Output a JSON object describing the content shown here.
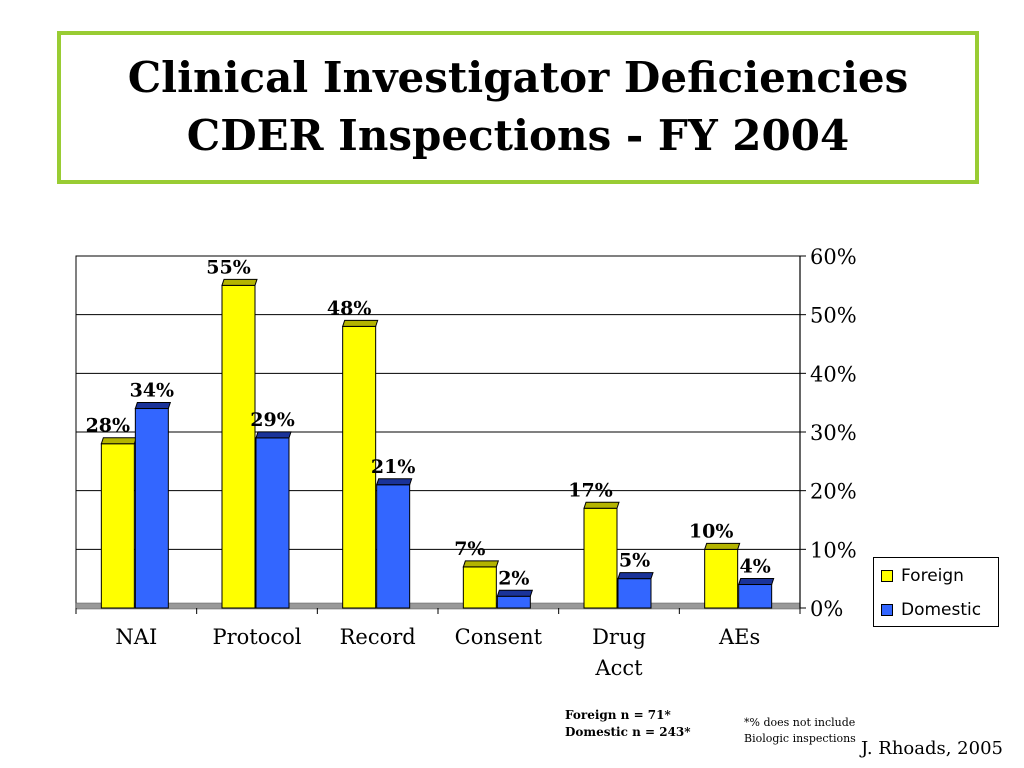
{
  "title": {
    "line1": "Clinical Investigator Deficiencies",
    "line2": "CDER Inspections - FY 2004"
  },
  "colors": {
    "title_border": "#99cc33",
    "foreign": "#ffff00",
    "foreign_top": "#b4b400",
    "domestic": "#3366ff",
    "domestic_top": "#1a3399",
    "floor": "#999999"
  },
  "chart_data": {
    "type": "bar",
    "categories": [
      "NAI",
      "Protocol",
      "Record",
      "Consent",
      "Drug\nAcct",
      "AEs"
    ],
    "series": [
      {
        "name": "Foreign",
        "values": [
          28,
          55,
          48,
          7,
          17,
          10
        ],
        "labels": [
          "28%",
          "55%",
          "48%",
          "7%",
          "17%",
          "10%"
        ]
      },
      {
        "name": "Domestic",
        "values": [
          34,
          29,
          21,
          2,
          5,
          4
        ],
        "labels": [
          "34%",
          "29%",
          "21%",
          "2%",
          "5%",
          "4%"
        ]
      }
    ],
    "ylim": [
      0,
      60
    ],
    "yticks": [
      "0%",
      "10%",
      "20%",
      "30%",
      "40%",
      "50%",
      "60%"
    ],
    "y_axis_side": "right",
    "grid": true,
    "legend_position": "right"
  },
  "legend": {
    "foreign": "Foreign",
    "domestic": "Domestic"
  },
  "notes": {
    "foreign_n": "Foreign n = 71*",
    "domestic_n": "Domestic n  = 243*",
    "footnote1": "*% does not include",
    "footnote2": "Biologic inspections",
    "author": "J. Rhoads, 2005"
  }
}
